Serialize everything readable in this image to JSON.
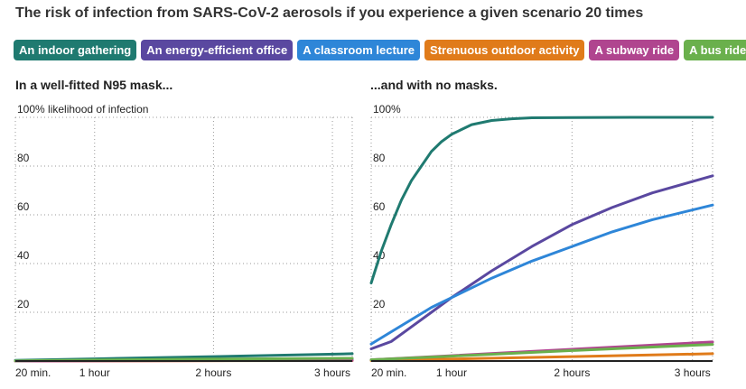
{
  "title": "The risk of infection from SARS-CoV-2 aerosols if you experience a given scenario 20 times",
  "legend": [
    {
      "label": "An indoor gathering",
      "color": "#1f7a70"
    },
    {
      "label": "An energy-efficient office",
      "color": "#5a48a0"
    },
    {
      "label": "A classroom lecture",
      "color": "#2e86d8"
    },
    {
      "label": "Strenuous outdoor activity",
      "color": "#e07b1a"
    },
    {
      "label": "A subway ride",
      "color": "#b0458f"
    },
    {
      "label": "A bus ride",
      "color": "#6ab04c"
    }
  ],
  "chart_data": [
    {
      "type": "line",
      "title": "In a well-fitted N95 mask...",
      "ylabel": "100% likelihood of infection",
      "xlim": [
        20,
        190
      ],
      "ylim": [
        0,
        100
      ],
      "xticks": [
        {
          "value": 20,
          "label": "20 min."
        },
        {
          "value": 60,
          "label": "1 hour"
        },
        {
          "value": 120,
          "label": "2 hours"
        },
        {
          "value": 180,
          "label": "3 hours"
        }
      ],
      "yticks": [
        {
          "value": 20,
          "label": "20"
        },
        {
          "value": 40,
          "label": "40"
        },
        {
          "value": 60,
          "label": "60"
        },
        {
          "value": 80,
          "label": "80"
        },
        {
          "value": 100,
          "label": "100% likelihood of infection"
        }
      ],
      "grid": true,
      "series": [
        {
          "name": "An indoor gathering",
          "color": "#1f7a70",
          "x": [
            20,
            60,
            120,
            190
          ],
          "y": [
            0.3,
            0.9,
            1.8,
            3.0
          ]
        },
        {
          "name": "An energy-efficient office",
          "color": "#5a48a0",
          "x": [
            20,
            60,
            120,
            190
          ],
          "y": [
            0.1,
            0.3,
            0.6,
            1.0
          ]
        },
        {
          "name": "A classroom lecture",
          "color": "#2e86d8",
          "x": [
            20,
            60,
            120,
            190
          ],
          "y": [
            0.1,
            0.3,
            0.6,
            0.9
          ]
        },
        {
          "name": "Strenuous outdoor activity",
          "color": "#e07b1a",
          "x": [
            20,
            190
          ],
          "y": [
            0.0,
            0.2
          ]
        },
        {
          "name": "A subway ride",
          "color": "#b0458f",
          "x": [
            20,
            190
          ],
          "y": [
            0.0,
            0.3
          ]
        },
        {
          "name": "A bus ride",
          "color": "#6ab04c",
          "x": [
            20,
            60,
            120,
            190
          ],
          "y": [
            0.1,
            0.4,
            0.8,
            1.1
          ]
        }
      ]
    },
    {
      "type": "line",
      "title": "...and with no masks.",
      "ylabel": "100%",
      "xlim": [
        20,
        190
      ],
      "ylim": [
        0,
        100
      ],
      "xticks": [
        {
          "value": 20,
          "label": "20 min."
        },
        {
          "value": 60,
          "label": "1 hour"
        },
        {
          "value": 120,
          "label": "2 hours"
        },
        {
          "value": 180,
          "label": "3 hours"
        }
      ],
      "yticks": [
        {
          "value": 20,
          "label": "20"
        },
        {
          "value": 40,
          "label": "40"
        },
        {
          "value": 60,
          "label": "60"
        },
        {
          "value": 80,
          "label": "80"
        },
        {
          "value": 100,
          "label": "100%"
        }
      ],
      "grid": true,
      "series": [
        {
          "name": "An indoor gathering",
          "color": "#1f7a70",
          "x": [
            20,
            25,
            30,
            35,
            40,
            45,
            50,
            55,
            60,
            70,
            80,
            90,
            100,
            120,
            150,
            190
          ],
          "y": [
            32,
            45,
            56,
            66,
            74,
            80,
            86,
            90,
            93,
            97,
            98.7,
            99.4,
            99.8,
            99.9,
            100,
            100
          ]
        },
        {
          "name": "An energy-efficient office",
          "color": "#5a48a0",
          "x": [
            20,
            30,
            40,
            50,
            60,
            80,
            100,
            120,
            140,
            160,
            190
          ],
          "y": [
            5,
            8,
            14,
            20,
            26,
            37,
            47,
            56,
            63,
            69,
            76
          ]
        },
        {
          "name": "A classroom lecture",
          "color": "#2e86d8",
          "x": [
            20,
            30,
            40,
            50,
            60,
            80,
            100,
            120,
            140,
            160,
            190
          ],
          "y": [
            7,
            12,
            17,
            22,
            26,
            34,
            41,
            47,
            53,
            58,
            64
          ]
        },
        {
          "name": "Strenuous outdoor activity",
          "color": "#e07b1a",
          "x": [
            20,
            60,
            120,
            190
          ],
          "y": [
            0.2,
            0.8,
            1.8,
            3.0
          ]
        },
        {
          "name": "A subway ride",
          "color": "#b0458f",
          "x": [
            20,
            60,
            120,
            190
          ],
          "y": [
            0.5,
            2.2,
            4.8,
            7.8
          ]
        },
        {
          "name": "A bus ride",
          "color": "#6ab04c",
          "x": [
            20,
            60,
            120,
            190
          ],
          "y": [
            0.5,
            2.0,
            4.3,
            6.8
          ]
        }
      ]
    }
  ]
}
